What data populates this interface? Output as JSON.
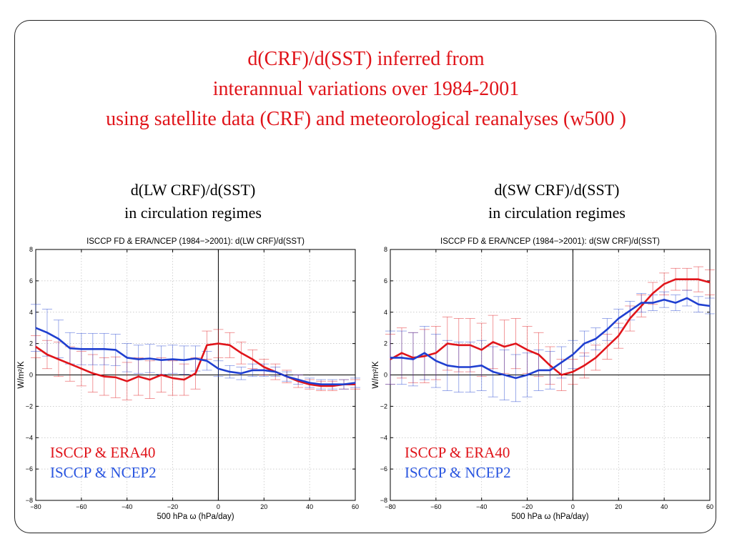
{
  "slide": {
    "title_lines": [
      "d(CRF)/d(SST) inferred from",
      "interannual variations over 1984-2001",
      "using satellite data (CRF) and meteorological reanalyses (w500 )"
    ],
    "left_heading": [
      "d(LW CRF)/d(SST)",
      "in circulation regimes"
    ],
    "right_heading": [
      "d(SW CRF)/d(SST)",
      "in circulation regimes"
    ]
  },
  "chart_data": [
    {
      "type": "line",
      "title": "ISCCP FD & ERA/NCEP (1984−>2001): d(LW CRF)/d(SST)",
      "xlabel": "500 hPa ω (hPa/day)",
      "ylabel": "W/m²/K",
      "xlim": [
        -80,
        60
      ],
      "ylim": [
        -8,
        8
      ],
      "xticks": [
        -80,
        -60,
        -40,
        -20,
        0,
        20,
        40,
        60
      ],
      "yticks": [
        -8,
        -6,
        -4,
        -2,
        0,
        2,
        4,
        6,
        8
      ],
      "grid": true,
      "legend_position": "bottom-left",
      "x": [
        -80,
        -75,
        -70,
        -65,
        -60,
        -55,
        -50,
        -45,
        -40,
        -35,
        -30,
        -25,
        -20,
        -15,
        -10,
        -5,
        0,
        5,
        10,
        15,
        20,
        25,
        30,
        35,
        40,
        45,
        50,
        55,
        60
      ],
      "series": [
        {
          "name": "ISCCP & ERA40",
          "color": "#e0141a",
          "values": [
            1.8,
            1.3,
            1.0,
            0.7,
            0.4,
            0.1,
            -0.1,
            -0.15,
            -0.4,
            -0.1,
            -0.3,
            0.0,
            -0.2,
            -0.3,
            0.1,
            1.9,
            2.0,
            1.9,
            1.4,
            1.0,
            0.5,
            0.2,
            -0.1,
            -0.4,
            -0.6,
            -0.7,
            -0.7,
            -0.6,
            -0.6
          ],
          "error": [
            0.7,
            0.9,
            1.1,
            1.1,
            1.1,
            1.2,
            1.2,
            1.3,
            1.2,
            1.2,
            1.2,
            1.1,
            1.1,
            1.0,
            1.0,
            0.9,
            0.9,
            0.8,
            0.7,
            0.6,
            0.5,
            0.5,
            0.4,
            0.4,
            0.3,
            0.3,
            0.3,
            0.3,
            0.3
          ]
        },
        {
          "name": "ISCCP & NCEP2",
          "color": "#1f3fd0",
          "values": [
            3.0,
            2.7,
            2.3,
            1.7,
            1.65,
            1.65,
            1.65,
            1.6,
            1.1,
            1.0,
            1.05,
            0.95,
            1.0,
            0.95,
            1.05,
            0.9,
            0.4,
            0.2,
            0.1,
            0.3,
            0.3,
            0.2,
            -0.1,
            -0.3,
            -0.5,
            -0.6,
            -0.6,
            -0.6,
            -0.5
          ],
          "error": [
            1.5,
            1.5,
            1.2,
            1.0,
            1.0,
            1.0,
            1.0,
            1.0,
            0.9,
            0.9,
            0.9,
            0.9,
            0.9,
            0.9,
            0.8,
            0.6,
            0.5,
            0.4,
            0.4,
            0.4,
            0.4,
            0.3,
            0.3,
            0.3,
            0.3,
            0.3,
            0.3,
            0.3,
            0.3
          ]
        }
      ]
    },
    {
      "type": "line",
      "title": "ISCCP FD & ERA/NCEP (1984−>2001): d(SW CRF)/d(SST)",
      "xlabel": "500 hPa ω (hPa/day)",
      "ylabel": "W/m²/K",
      "xlim": [
        -80,
        60
      ],
      "ylim": [
        -8,
        8
      ],
      "xticks": [
        -80,
        -60,
        -40,
        -20,
        0,
        20,
        40,
        60
      ],
      "yticks": [
        -8,
        -6,
        -4,
        -2,
        0,
        2,
        4,
        6,
        8
      ],
      "grid": true,
      "legend_position": "bottom-left",
      "x": [
        -80,
        -75,
        -70,
        -65,
        -60,
        -55,
        -50,
        -45,
        -40,
        -35,
        -30,
        -25,
        -20,
        -15,
        -10,
        -5,
        0,
        5,
        10,
        15,
        20,
        25,
        30,
        35,
        40,
        45,
        50,
        55,
        60
      ],
      "series": [
        {
          "name": "ISCCP & ERA40",
          "color": "#e0141a",
          "values": [
            1.0,
            1.4,
            1.1,
            1.2,
            1.4,
            2.0,
            1.9,
            1.9,
            1.6,
            2.1,
            1.8,
            2.0,
            1.6,
            1.3,
            0.6,
            0.0,
            0.2,
            0.6,
            1.1,
            1.8,
            2.5,
            3.6,
            4.4,
            5.2,
            5.8,
            6.1,
            6.1,
            6.1,
            5.9
          ],
          "error": [
            1.6,
            1.6,
            1.6,
            1.7,
            1.7,
            1.7,
            1.7,
            1.7,
            1.7,
            1.7,
            1.7,
            1.6,
            1.5,
            1.4,
            1.2,
            1.0,
            0.8,
            0.8,
            0.8,
            0.8,
            0.8,
            0.8,
            0.7,
            0.7,
            0.7,
            0.7,
            0.7,
            0.8,
            0.8
          ]
        },
        {
          "name": "ISCCP & NCEP2",
          "color": "#1f3fd0",
          "values": [
            1.1,
            1.1,
            1.0,
            1.4,
            0.9,
            0.6,
            0.5,
            0.5,
            0.6,
            0.2,
            0.0,
            -0.2,
            0.0,
            0.3,
            0.3,
            0.8,
            1.3,
            2.0,
            2.3,
            2.9,
            3.6,
            4.1,
            4.6,
            4.6,
            4.8,
            4.6,
            4.9,
            4.5,
            4.4
          ],
          "error": [
            1.7,
            1.7,
            1.7,
            1.7,
            1.7,
            1.6,
            1.6,
            1.6,
            1.6,
            1.6,
            1.6,
            1.5,
            1.4,
            1.3,
            1.2,
            1.0,
            0.9,
            0.8,
            0.7,
            0.7,
            0.6,
            0.6,
            0.6,
            0.5,
            0.5,
            0.5,
            0.5,
            0.5,
            0.5
          ]
        }
      ]
    }
  ]
}
